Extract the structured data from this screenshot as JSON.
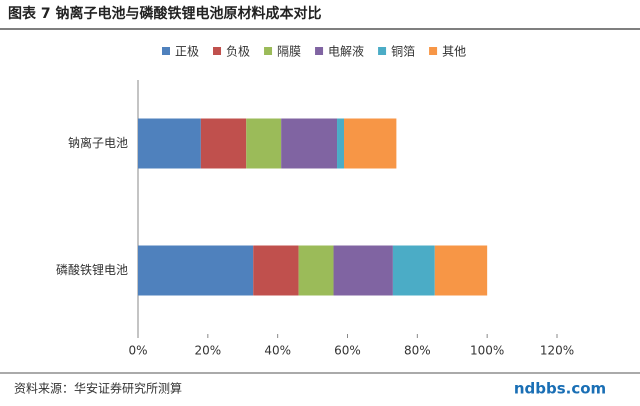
{
  "chart_data": {
    "type": "stacked-bar-horizontal",
    "title": "图表 7 钠离子电池与磷酸铁锂电池原材料成本对比",
    "source": "资料来源：华安证券研究所测算",
    "watermark": "ndbbs.com",
    "categories": [
      "钠离子电池",
      "磷酸铁锂电池"
    ],
    "series": [
      {
        "name": "正极",
        "color": "#4f81bd",
        "values": [
          18,
          33
        ]
      },
      {
        "name": "负极",
        "color": "#c0504d",
        "values": [
          13,
          13
        ]
      },
      {
        "name": "隔膜",
        "color": "#9bbb59",
        "values": [
          10,
          10
        ]
      },
      {
        "name": "电解液",
        "color": "#8064a2",
        "values": [
          16,
          17
        ]
      },
      {
        "name": "铜箔",
        "color": "#4bacc6",
        "values": [
          2,
          12
        ]
      },
      {
        "name": "其他",
        "color": "#f79646",
        "values": [
          15,
          15
        ]
      }
    ],
    "xlim": [
      0,
      120
    ],
    "xticks": [
      {
        "value": 0,
        "label": "0%"
      },
      {
        "value": 20,
        "label": "20%"
      },
      {
        "value": 40,
        "label": "40%"
      },
      {
        "value": 60,
        "label": "60%"
      },
      {
        "value": 80,
        "label": "80%"
      },
      {
        "value": 100,
        "label": "100%"
      },
      {
        "value": 120,
        "label": "120%"
      }
    ],
    "grid": false
  }
}
